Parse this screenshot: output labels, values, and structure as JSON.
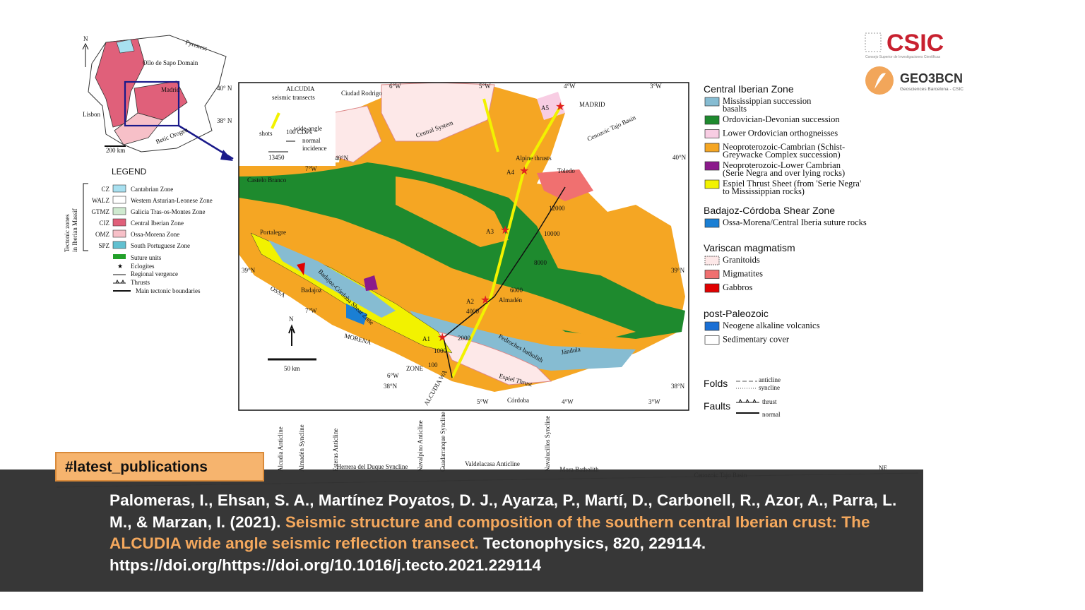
{
  "logos": {
    "csic": "CSIC",
    "csic_sub": "Consejo Superior de Investigaciones Científicas",
    "geo3bcn": "GEO3BCN",
    "geo3bcn_sub": "Geosciences Barcelona - CSIC"
  },
  "inset": {
    "labels": [
      "N",
      "Pyreness",
      "Ollo de Sapo Domain",
      "Madrid",
      "40° N",
      "38° N",
      "Lisbon",
      "Betic Orogen",
      "200 km"
    ]
  },
  "legend_left": {
    "title": "LEGEND",
    "group": [
      "Tectonic zones",
      "in Iberian Massif"
    ],
    "zones": [
      {
        "code": "CZ",
        "name": "Cantabrian Zone"
      },
      {
        "code": "WALZ",
        "name": "Western Asturian-Leonese Zone"
      },
      {
        "code": "GTMZ",
        "name": "Galicia Tras-os-Montes Zone"
      },
      {
        "code": "CIZ",
        "name": "Central Iberian Zone"
      },
      {
        "code": "OMZ",
        "name": "Ossa-Morena Zone"
      },
      {
        "code": "SPZ",
        "name": "South Portuguese Zone"
      }
    ],
    "symbols": [
      "Suture units",
      "Eclogites",
      "Regional vergence",
      "Thrusts",
      "Main tectonic boundaries"
    ]
  },
  "map": {
    "labels": [
      "ALCUDIA",
      "seismic transects",
      "wide-angle",
      "shots",
      "100 CDPs",
      "normal",
      "incidence",
      "13450",
      "Ciudad Rodrigo",
      "6°W",
      "5°W",
      "4°W",
      "3°W",
      "MADRID",
      "Cenozoic Tajo Basin",
      "Central System",
      "A5",
      "Alpine thrusts",
      "A4",
      "Toledo",
      "40°N",
      "7°W",
      "40°N",
      "Castelo Branco",
      "A3",
      "10000",
      "12000",
      "8000",
      "6000",
      "Almadén",
      "A2",
      "4000",
      "Portalegre",
      "39°N",
      "39°N",
      "OSSA",
      "Badajoz",
      "7°W",
      "MORENA",
      "A1",
      "2000",
      "1000",
      "100",
      "ZONE",
      "6°W",
      "38°N",
      "5°W",
      "4°W",
      "3°W",
      "38°N",
      "Córdoba",
      "ALCUDIA WA",
      "N",
      "50 km",
      "Jándula",
      "Espiel Thrust",
      "Badajoz-Córdoba Shear Zone",
      "Pedroches batholith"
    ]
  },
  "legend_right": {
    "sections": [
      {
        "title": "Central Iberian Zone",
        "items": [
          {
            "color": "#86bcd2",
            "lines": [
              "Mississippian succession",
              "basalts"
            ]
          },
          {
            "color": "#1e8a2e",
            "lines": [
              "Ordovician-Devonian succession"
            ]
          },
          {
            "color": "#f8cde3",
            "lines": [
              "Lower Ordovician orthogneisses"
            ]
          },
          {
            "color": "#f5a623",
            "lines": [
              "Neoproterozoic-Cambrian (Schist-",
              "Greywacke Complex succession)"
            ]
          },
          {
            "color": "#8b1a8b",
            "lines": [
              "Neoproterozoic-Lower Cambrian",
              "(Serie Negra and over lying rocks)"
            ]
          },
          {
            "color": "#f2f200",
            "lines": [
              "Espiel Thrust Sheet (from 'Serie Negra'",
              "to Mississippian rocks)"
            ]
          }
        ]
      },
      {
        "title": "Badajoz-Córdoba Shear Zone",
        "items": [
          {
            "color": "#1a7fd4",
            "lines": [
              "Ossa-Morena/Central Iberia suture rocks"
            ]
          }
        ]
      },
      {
        "title": "Variscan magmatism",
        "items": [
          {
            "color": "#fde8e8",
            "lines": [
              "Granitoids"
            ]
          },
          {
            "color": "#f07070",
            "lines": [
              "Migmatites"
            ]
          },
          {
            "color": "#e00000",
            "lines": [
              "Gabbros"
            ]
          }
        ]
      },
      {
        "title": "post-Paleozoic",
        "items": [
          {
            "color": "#1a6fd4",
            "lines": [
              "Neogene alkaline volcanics"
            ]
          },
          {
            "color": "#ffffff",
            "lines": [
              "Sedimentary cover"
            ]
          }
        ]
      }
    ],
    "folds": {
      "title": "Folds",
      "a": "anticline",
      "b": "syncline"
    },
    "faults": {
      "title": "Faults",
      "a": "thrust",
      "b": "normal"
    }
  },
  "cross_section": {
    "labels": [
      "Alcudia Anticline",
      "Almadén Syncline",
      "Esteras Anticline",
      "Herrera del Duque Syncline",
      "Navalpino Anticline",
      "Guadarranque Syncline",
      "Valdelacasa Anticline",
      "Navalucillos Syncline",
      "Mora Batholith",
      "Cenozoic Tajo Basin",
      "NE"
    ]
  },
  "tag": "#latest_publications",
  "citation": {
    "authors": "Palomeras, I., Ehsan, S. A., Martínez Poyatos, D. J., Ayarza, P., Martí, D., Carbonell, R., Azor, A., Parra, L. M., & Marzan, I. (2021).",
    "title": "Seismic structure and composition of the southern central Iberian crust: The ALCUDIA wide angle seismic reflection transect.",
    "source": "Tectonophysics, 820, 229114. https://doi.org/https://doi.org/10.1016/j.tecto.2021.229114"
  }
}
